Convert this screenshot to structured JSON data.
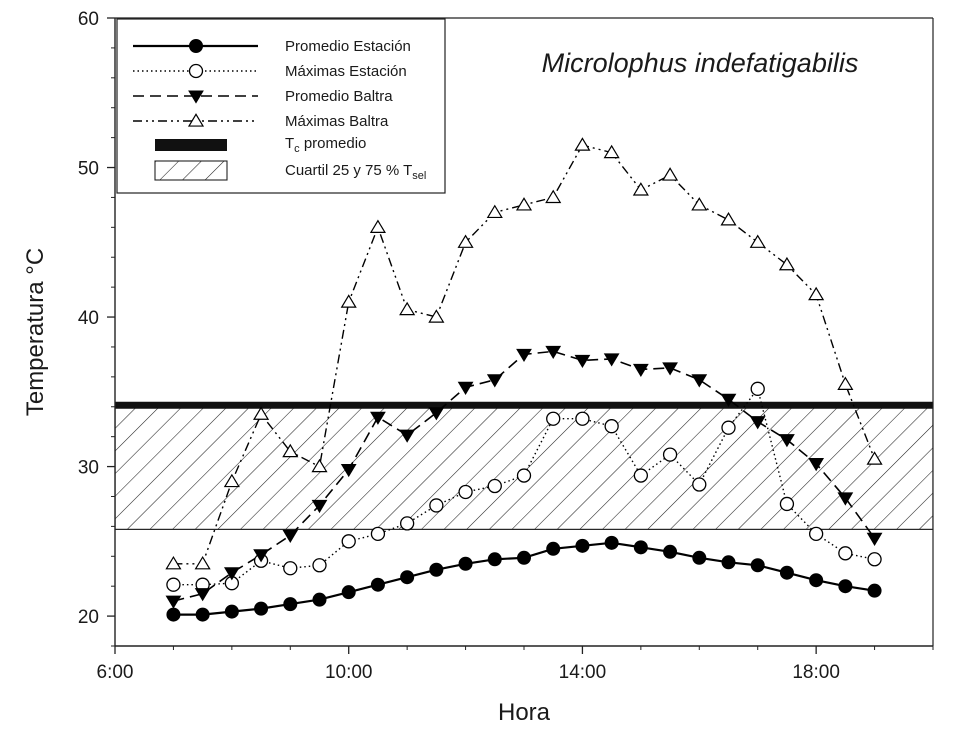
{
  "chart_data": {
    "type": "line",
    "title": "Microlophus indefatigabilis",
    "xlabel": "Hora",
    "ylabel": "Temperatura °C",
    "xlim": [
      6,
      20
    ],
    "ylim": [
      18,
      60
    ],
    "x_ticks": [
      6,
      10,
      14,
      18
    ],
    "x_tick_labels": [
      "6:00",
      "10:00",
      "14:00",
      "18:00"
    ],
    "y_ticks": [
      20,
      30,
      40,
      50,
      60
    ],
    "y_tick_labels": [
      "20",
      "30",
      "40",
      "50",
      "60"
    ],
    "legend_position": "top-left",
    "series": [
      {
        "name": "Promedio Estación",
        "marker": "filled-circle",
        "line": "solid",
        "x": [
          7,
          7.5,
          8,
          8.5,
          9,
          9.5,
          10,
          10.5,
          11,
          11.5,
          12,
          12.5,
          13,
          13.5,
          14,
          14.5,
          15,
          15.5,
          16,
          16.5,
          17,
          17.5,
          18,
          18.5,
          19
        ],
        "y": [
          20.1,
          20.1,
          20.3,
          20.5,
          20.8,
          21.1,
          21.6,
          22.1,
          22.6,
          23.1,
          23.5,
          23.8,
          23.9,
          24.5,
          24.7,
          24.9,
          24.6,
          24.3,
          23.9,
          23.6,
          23.4,
          22.9,
          22.4,
          22.0,
          21.7
        ]
      },
      {
        "name": "Máximas Estación",
        "marker": "open-circle",
        "line": "dotted",
        "x": [
          7,
          7.5,
          8,
          8.5,
          9,
          9.5,
          10,
          10.5,
          11,
          11.5,
          12,
          12.5,
          13,
          13.5,
          14,
          14.5,
          15,
          15.5,
          16,
          16.5,
          17,
          17.5,
          18,
          18.5,
          19
        ],
        "y": [
          22.1,
          22.1,
          22.2,
          23.7,
          23.2,
          23.4,
          25.0,
          25.5,
          26.2,
          27.4,
          28.3,
          28.7,
          29.4,
          33.2,
          33.2,
          32.7,
          29.4,
          30.8,
          28.8,
          32.6,
          35.2,
          27.5,
          25.5,
          24.2,
          23.8
        ]
      },
      {
        "name": "Promedio Baltra",
        "marker": "filled-triangle-down",
        "line": "dashed",
        "x": [
          7,
          7.5,
          8,
          8.5,
          9,
          9.5,
          10,
          10.5,
          11,
          11.5,
          12,
          12.5,
          13,
          13.5,
          14,
          14.5,
          15,
          15.5,
          16,
          16.5,
          17,
          17.5,
          18,
          18.5,
          19
        ],
        "y": [
          21.0,
          21.5,
          22.9,
          24.1,
          25.4,
          27.4,
          29.8,
          33.3,
          32.1,
          33.6,
          35.3,
          35.8,
          37.5,
          37.7,
          37.1,
          37.2,
          36.5,
          36.6,
          35.8,
          34.5,
          33.0,
          31.8,
          30.2,
          27.9,
          25.2
        ]
      },
      {
        "name": "Máximas Baltra",
        "marker": "open-triangle-up",
        "line": "dash-dot-dot",
        "x": [
          7,
          7.5,
          8,
          8.5,
          9,
          9.5,
          10,
          10.5,
          11,
          11.5,
          12,
          12.5,
          13,
          13.5,
          14,
          14.5,
          15,
          15.5,
          16,
          16.5,
          17,
          17.5,
          18,
          18.5,
          19
        ],
        "y": [
          23.5,
          23.5,
          29.0,
          33.5,
          31.0,
          30.0,
          41.0,
          46.0,
          40.5,
          40.0,
          45.0,
          47.0,
          47.5,
          48.0,
          51.5,
          51.0,
          48.5,
          49.5,
          47.5,
          46.5,
          45.0,
          43.5,
          41.5,
          35.5,
          30.5
        ]
      }
    ],
    "reference_line": {
      "name": "T",
      "name_sub": "c",
      "name_suffix": " promedio",
      "y": 34.1
    },
    "reference_band": {
      "name": "Cuartil 25 y 75 % T",
      "name_sub": "sel",
      "y_low": 25.8,
      "y_high": 34.0
    }
  }
}
